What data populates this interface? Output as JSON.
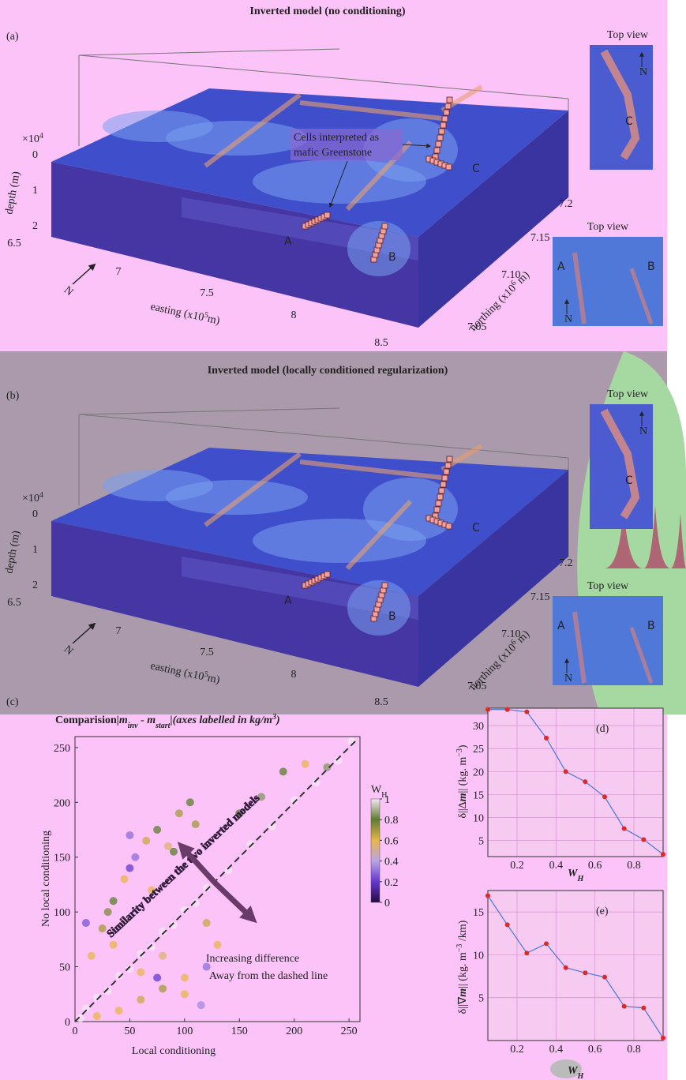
{
  "panel_a": {
    "label": "(a)",
    "title": "Inverted model (no conditioning)",
    "depth_scale": "×10",
    "depth_scale_exp": "4",
    "depth_ticks": [
      "0",
      "1",
      "2"
    ],
    "depth_label": "depth (m)",
    "easting_ticks": [
      "6.5",
      "7",
      "7.5",
      "8",
      "8.5"
    ],
    "easting_label": [
      "easting (x10",
      "5",
      "m)"
    ],
    "northing_ticks": [
      "7.2",
      "7.15",
      "7.10",
      "7.05"
    ],
    "northing_label": [
      "northing (x10",
      "6",
      " m)"
    ],
    "north": "N",
    "annotation": [
      "Cells interpreted as",
      "mafic Greenstone"
    ],
    "bodies": [
      "A",
      "B",
      "C"
    ],
    "top_view_1": {
      "title": "Top view",
      "bodies": [
        "C"
      ],
      "north": "N"
    },
    "top_view_2": {
      "title": "Top view",
      "bodies": [
        "A",
        "B"
      ],
      "north": "N"
    }
  },
  "panel_b": {
    "label": "(b)",
    "title": "Inverted model (locally conditioned regularization)",
    "depth_scale": "×10",
    "depth_scale_exp": "4",
    "depth_ticks": [
      "0",
      "1",
      "2"
    ],
    "depth_label": "depth (m)",
    "easting_ticks": [
      "6.5",
      "7",
      "7.5",
      "8",
      "8.5"
    ],
    "easting_label": [
      "easting (x10",
      "5",
      "m)"
    ],
    "northing_ticks": [
      "7.2",
      "7.15",
      "7.10",
      "7.05"
    ],
    "northing_label": [
      "northing (x10",
      "6",
      " m)"
    ],
    "north": "N",
    "bodies": [
      "A",
      "B",
      "C"
    ],
    "top_view_1": {
      "title": "Top view",
      "bodies": [
        "C"
      ],
      "north": "N"
    },
    "top_view_2": {
      "title": "Top view",
      "bodies": [
        "A",
        "B"
      ],
      "north": "N"
    }
  },
  "chart_data": [
    {
      "type": "scatter",
      "label": "(c)",
      "title": "Comparision",
      "title_formula": [
        "|m",
        "inv",
        " - m",
        "start",
        "|"
      ],
      "title_note": [
        "(axes labelled in kg/m",
        "3",
        ")"
      ],
      "x_label": "Local conditioning",
      "y_label": "No local conditioning",
      "xlim": [
        0,
        260
      ],
      "ylim": [
        0,
        260
      ],
      "xticks": [
        0,
        50,
        100,
        150,
        200,
        250
      ],
      "yticks": [
        0,
        50,
        100,
        150,
        200,
        250
      ],
      "x": [
        5,
        10,
        20,
        30,
        40,
        50,
        60,
        70,
        80,
        90,
        100,
        110,
        120,
        140,
        160,
        180,
        200,
        220,
        240,
        252,
        15,
        25,
        35,
        45,
        55,
        65,
        75,
        85,
        95,
        105,
        20,
        40,
        60,
        80,
        100,
        120,
        30,
        50,
        70,
        90,
        110,
        60,
        80,
        100,
        120,
        130,
        10,
        50,
        150,
        170,
        190,
        210,
        230,
        35,
        75,
        115
      ],
      "y": [
        3,
        12,
        22,
        28,
        42,
        48,
        62,
        68,
        82,
        88,
        102,
        108,
        122,
        138,
        162,
        178,
        202,
        218,
        238,
        256,
        60,
        85,
        110,
        130,
        150,
        165,
        175,
        160,
        190,
        200,
        5,
        10,
        20,
        30,
        25,
        50,
        100,
        140,
        120,
        155,
        180,
        45,
        60,
        40,
        90,
        70,
        90,
        170,
        190,
        205,
        228,
        235,
        232,
        70,
        40,
        15
      ],
      "w": [
        1,
        1,
        1,
        1,
        1,
        1,
        1,
        1,
        1,
        1,
        1,
        1,
        1,
        1,
        1,
        1,
        1,
        1,
        1,
        1,
        0.6,
        0.7,
        0.8,
        0.6,
        0.3,
        0.65,
        0.8,
        0.55,
        0.7,
        0.8,
        0.6,
        0.6,
        0.65,
        0.7,
        0.6,
        0.3,
        0.75,
        0.2,
        0.6,
        0.8,
        0.7,
        0.6,
        0.55,
        0.6,
        0.65,
        0.6,
        0.25,
        0.3,
        0.8,
        0.85,
        0.8,
        0.6,
        0.85,
        0.6,
        0.2,
        0.35
      ],
      "colorbar": {
        "label": "W",
        "label_sub": "H",
        "lim": [
          0,
          1
        ],
        "ticks": [
          0,
          0.2,
          0.4,
          0.6,
          0.8,
          1
        ],
        "colors": [
          "#240845",
          "#6438d0",
          "#b9a4e6",
          "#eab64c",
          "#5b7d2e",
          "#f7e6f5"
        ]
      },
      "annotation": "Similarity between the two inverted models",
      "note": [
        "Increasing difference",
        "Away from the dashed line"
      ]
    },
    {
      "type": "line",
      "label": "(d)",
      "x": [
        0.05,
        0.15,
        0.25,
        0.35,
        0.45,
        0.55,
        0.65,
        0.75,
        0.85,
        0.95
      ],
      "xlim": [
        0.05,
        0.95
      ],
      "xticks": [
        0.2,
        0.4,
        0.6,
        0.8
      ],
      "ylim": [
        1.5,
        33.8
      ],
      "yticks": [
        5,
        10,
        15,
        20,
        25,
        30
      ],
      "grid": true,
      "x_label": [
        "W",
        "H"
      ],
      "y_label": [
        "δ||Δ",
        "m",
        "|| (kg. m",
        "−3",
        ")"
      ],
      "series": [
        {
          "color": "#4a78d2",
          "marker_color": "#e02828",
          "values": [
            33.5,
            33.5,
            33,
            27.3,
            20,
            17.8,
            14.5,
            7.6,
            5.2,
            2
          ]
        }
      ]
    },
    {
      "type": "line",
      "label": "(e)",
      "x": [
        0.05,
        0.15,
        0.25,
        0.35,
        0.45,
        0.55,
        0.65,
        0.75,
        0.85,
        0.95
      ],
      "xlim": [
        0.05,
        0.95
      ],
      "xticks": [
        0.2,
        0.4,
        0.6,
        0.8
      ],
      "ylim": [
        0,
        17.5
      ],
      "yticks": [
        5,
        10,
        15
      ],
      "grid": true,
      "x_label": [
        "W",
        "H"
      ],
      "y_label": [
        "δ||∇",
        "m",
        "|| (kg. m",
        "−3",
        " /km)"
      ],
      "series": [
        {
          "color": "#4a78d2",
          "marker_color": "#e02828",
          "values": [
            16.9,
            13.5,
            10.2,
            11.3,
            8.5,
            7.9,
            7.4,
            4,
            3.8,
            0.3
          ]
        }
      ]
    }
  ]
}
